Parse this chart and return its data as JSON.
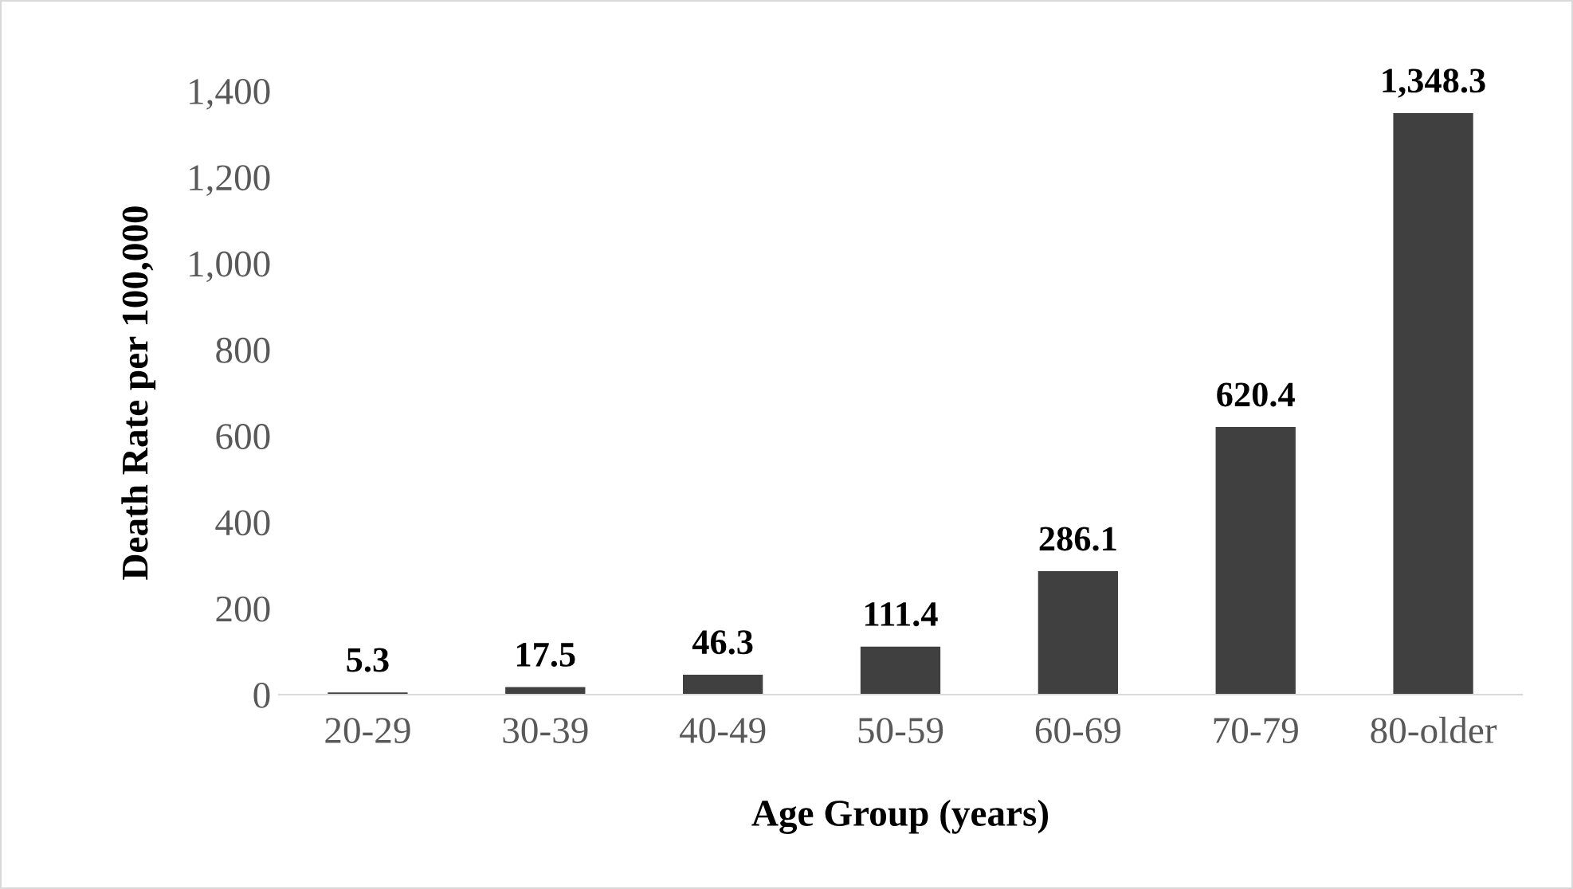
{
  "chart_data": {
    "type": "bar",
    "xlabel": "Age Group (years)",
    "ylabel": "Death Rate per 100,000",
    "categories": [
      "20-29",
      "30-39",
      "40-49",
      "50-59",
      "60-69",
      "70-79",
      "80-older"
    ],
    "values": [
      5.3,
      17.5,
      46.3,
      111.4,
      286.1,
      620.4,
      1348.3
    ],
    "value_labels": [
      "5.3",
      "17.5",
      "46.3",
      "111.4",
      "286.1",
      "620.4",
      "1,348.3"
    ],
    "color": "#404040",
    "ylim": [
      0,
      1400
    ],
    "yticks": [
      0,
      200,
      400,
      600,
      800,
      {
        "value": 1000,
        "label": "1,000"
      },
      {
        "value": 1200,
        "label": "1,200"
      },
      {
        "value": 1400,
        "label": "1,400"
      }
    ],
    "grid": false
  }
}
